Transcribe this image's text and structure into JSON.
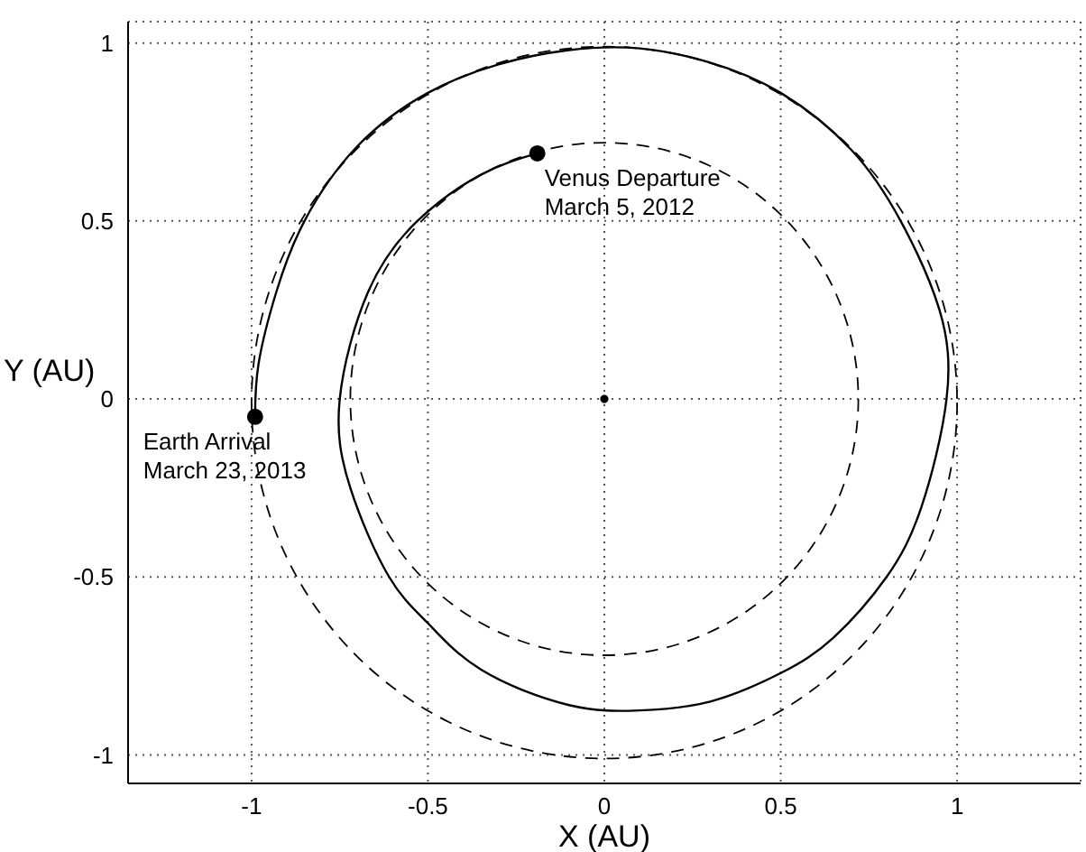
{
  "chart_data": {
    "type": "line",
    "xlabel": "X (AU)",
    "ylabel": "Y (AU)",
    "xlim": [
      -1.35,
      1.35
    ],
    "ylim": [
      -1.08,
      1.06
    ],
    "xticks": [
      -1,
      -0.5,
      0,
      0.5,
      1
    ],
    "yticks": [
      -1,
      -0.5,
      0,
      0.5,
      1
    ],
    "grid": true,
    "series": [
      {
        "type": "line",
        "line_style": "solid",
        "marker": "none",
        "color": "#000000",
        "x": [
          -0.19,
          -0.35,
          -0.53,
          -0.67,
          -0.75,
          -0.72,
          -0.61,
          -0.5,
          -0.35,
          -0.1,
          0.1,
          0.3,
          0.5,
          0.65,
          0.8,
          0.9,
          0.97,
          0.95,
          0.84,
          0.7,
          0.5,
          0.3,
          0.1,
          -0.1,
          -0.3,
          -0.5,
          -0.7,
          -0.85,
          -0.93,
          -0.98,
          -0.99
        ],
        "values": [
          0.69,
          0.63,
          0.5,
          0.3,
          0,
          -0.25,
          -0.5,
          -0.63,
          -0.76,
          -0.86,
          -0.875,
          -0.85,
          -0.77,
          -0.67,
          -0.5,
          -0.3,
          0,
          0.25,
          0.5,
          0.7,
          0.86,
          0.945,
          0.985,
          0.98,
          0.94,
          0.86,
          0.71,
          0.5,
          0.3,
          0.1,
          -0.05
        ]
      },
      {
        "type": "scatter",
        "marker": "circle",
        "color": "#000000",
        "x": [
          -0.19,
          -0.99
        ],
        "values": [
          0.69,
          -0.05
        ]
      },
      {
        "type": "scatter",
        "marker": "circle",
        "color": "#000000",
        "x": [
          0
        ],
        "values": [
          0
        ]
      }
    ],
    "annotations": [
      {
        "text": "Venus Departure\nMarch 5, 2012",
        "x": -0.19,
        "y": 0.69
      },
      {
        "text": "Earth Arrival\nMarch 23, 2013",
        "x": -0.99,
        "y": -0.05
      }
    ]
  }
}
